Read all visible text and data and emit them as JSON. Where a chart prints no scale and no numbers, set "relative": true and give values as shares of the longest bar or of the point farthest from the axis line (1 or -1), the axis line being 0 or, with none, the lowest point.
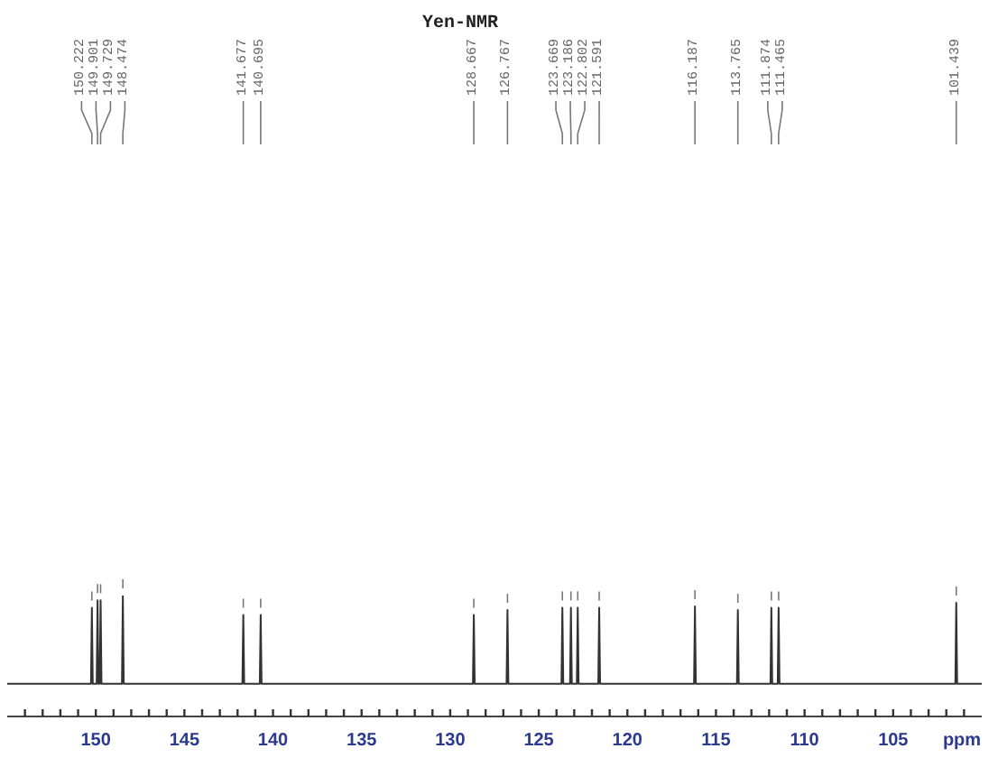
{
  "chart_data": {
    "type": "line",
    "title": "Yen-NMR",
    "xlabel": "ppm",
    "relative": true,
    "x": [
      155,
      150.272,
      150.222,
      150.172,
      149.951,
      149.901,
      149.851,
      149.779,
      149.729,
      149.679,
      148.524,
      148.474,
      148.424,
      141.727,
      141.677,
      141.627,
      140.745,
      140.695,
      140.645,
      128.717,
      128.667,
      128.617,
      126.817,
      126.767,
      126.717,
      123.719,
      123.669,
      123.619,
      123.236,
      123.186,
      123.136,
      122.852,
      122.802,
      122.752,
      121.641,
      121.591,
      121.541,
      116.237,
      116.187,
      116.137,
      113.815,
      113.765,
      113.715,
      111.924,
      111.874,
      111.824,
      111.515,
      111.465,
      111.415,
      101.489,
      101.439,
      101.389,
      100
    ],
    "values": [
      0.27,
      0.27,
      0.9,
      0.27,
      0.27,
      0.96,
      0.27,
      0.27,
      0.96,
      0.27,
      0.27,
      1,
      0.27,
      0.27,
      0.84,
      0.27,
      0.27,
      0.84,
      0.27,
      0.27,
      0.84,
      0.27,
      0.27,
      0.88,
      0.27,
      0.27,
      0.9,
      0.27,
      0.27,
      0.9,
      0.27,
      0.27,
      0.9,
      0.27,
      0.27,
      0.9,
      0.27,
      0.27,
      0.91,
      0.27,
      0.27,
      0.88,
      0.27,
      0.27,
      0.9,
      0.27,
      0.27,
      0.9,
      0.27,
      0.27,
      0.94,
      0.27,
      0.27
    ],
    "color": "#333333",
    "marker": "none",
    "line_style": "solid",
    "xlim": [
      155,
      100
    ],
    "xticks": [
      {
        "value": 154,
        "label": null
      },
      {
        "value": 153,
        "label": null
      },
      {
        "value": 152,
        "label": null
      },
      {
        "value": 151,
        "label": null
      },
      150,
      {
        "value": 149,
        "label": null
      },
      {
        "value": 148,
        "label": null
      },
      {
        "value": 147,
        "label": null
      },
      {
        "value": 146,
        "label": null
      },
      145,
      {
        "value": 144,
        "label": null
      },
      {
        "value": 143,
        "label": null
      },
      {
        "value": 142,
        "label": null
      },
      {
        "value": 141,
        "label": null
      },
      140,
      {
        "value": 139,
        "label": null
      },
      {
        "value": 138,
        "label": null
      },
      {
        "value": 137,
        "label": null
      },
      {
        "value": 136,
        "label": null
      },
      135,
      {
        "value": 134,
        "label": null
      },
      {
        "value": 133,
        "label": null
      },
      {
        "value": 132,
        "label": null
      },
      {
        "value": 131,
        "label": null
      },
      130,
      {
        "value": 129,
        "label": null
      },
      {
        "value": 128,
        "label": null
      },
      {
        "value": 127,
        "label": null
      },
      {
        "value": 126,
        "label": null
      },
      125,
      {
        "value": 124,
        "label": null
      },
      {
        "value": 123,
        "label": null
      },
      {
        "value": 122,
        "label": null
      },
      {
        "value": 121,
        "label": null
      },
      120,
      {
        "value": 119,
        "label": null
      },
      {
        "value": 118,
        "label": null
      },
      {
        "value": 117,
        "label": null
      },
      {
        "value": 116,
        "label": null
      },
      115,
      {
        "value": 114,
        "label": null
      },
      {
        "value": 113,
        "label": null
      },
      {
        "value": 112,
        "label": null
      },
      {
        "value": 111,
        "label": null
      },
      110,
      {
        "value": 109,
        "label": null
      },
      {
        "value": 108,
        "label": null
      },
      {
        "value": 107,
        "label": null
      },
      {
        "value": 106,
        "label": null
      },
      105,
      {
        "value": 104,
        "label": null
      },
      {
        "value": 103,
        "label": null
      },
      {
        "value": 102,
        "label": null
      },
      {
        "value": 101,
        "label": null
      }
    ],
    "annotations": [
      "150.222",
      "149.901",
      "149.729",
      "148.474",
      "141.677",
      "140.695",
      "128.667",
      "126.767",
      "123.669",
      "123.186",
      "122.802",
      "121.591",
      "116.187",
      "113.765",
      "111.874",
      "111.465",
      "101.439"
    ]
  }
}
